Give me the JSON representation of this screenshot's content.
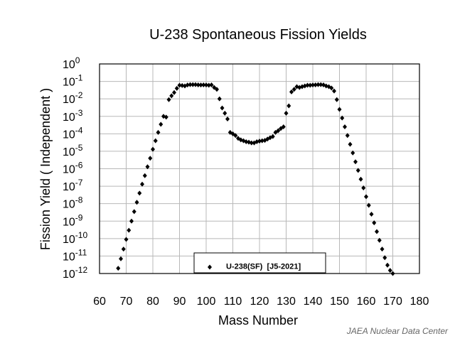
{
  "chart_data": {
    "type": "scatter",
    "title": "U-238  Spontaneous Fission Yields",
    "xlabel": "Mass Number",
    "ylabel": "Fission Yield  ( Independent )",
    "xlim": [
      60,
      180
    ],
    "x_ticks": [
      "60",
      "70",
      "80",
      "90",
      "100",
      "110",
      "120",
      "130",
      "140",
      "150",
      "160",
      "170",
      "180"
    ],
    "y_scale": "log",
    "ylim": [
      1e-12,
      1
    ],
    "y_tick_exponents": [
      "0",
      "-1",
      "-2",
      "-3",
      "-4",
      "-5",
      "-6",
      "-7",
      "-8",
      "-9",
      "-10",
      "-11",
      "-12"
    ],
    "y_tick_base": "10",
    "grid": true,
    "legend_position": "bottom-center",
    "series": [
      {
        "name": "U-238(SF)  [J5-2021]",
        "marker": "diamond",
        "color": "#000000",
        "points": [
          [
            67,
            2e-12
          ],
          [
            68,
            7e-12
          ],
          [
            69,
            2.5e-11
          ],
          [
            70,
            9e-11
          ],
          [
            71,
            3e-10
          ],
          [
            72,
            1e-09
          ],
          [
            73,
            3.5e-09
          ],
          [
            74,
            1.2e-08
          ],
          [
            75,
            4e-08
          ],
          [
            76,
            1.3e-07
          ],
          [
            77,
            4e-07
          ],
          [
            78,
            1.3e-06
          ],
          [
            79,
            4e-06
          ],
          [
            80,
            1.3e-05
          ],
          [
            81,
            4e-05
          ],
          [
            82,
            0.00012
          ],
          [
            83,
            0.00035
          ],
          [
            84,
            0.001
          ],
          [
            85,
            0.0009
          ],
          [
            86,
            0.009
          ],
          [
            87,
            0.015
          ],
          [
            88,
            0.023
          ],
          [
            89,
            0.04
          ],
          [
            90,
            0.06
          ],
          [
            91,
            0.058
          ],
          [
            92,
            0.055
          ],
          [
            93,
            0.062
          ],
          [
            94,
            0.065
          ],
          [
            95,
            0.065
          ],
          [
            96,
            0.065
          ],
          [
            97,
            0.063
          ],
          [
            98,
            0.062
          ],
          [
            99,
            0.063
          ],
          [
            100,
            0.062
          ],
          [
            101,
            0.06
          ],
          [
            102,
            0.063
          ],
          [
            103,
            0.045
          ],
          [
            104,
            0.035
          ],
          [
            105,
            0.01
          ],
          [
            106,
            0.003
          ],
          [
            107,
            0.0015
          ],
          [
            108,
            0.0007
          ],
          [
            109,
            0.00012
          ],
          [
            110,
            0.0001
          ],
          [
            111,
            8e-05
          ],
          [
            112,
            5.5e-05
          ],
          [
            113,
            4.5e-05
          ],
          [
            114,
            4e-05
          ],
          [
            115,
            3.5e-05
          ],
          [
            116,
            3.3e-05
          ],
          [
            117,
            3e-05
          ],
          [
            118,
            3e-05
          ],
          [
            119,
            3.5e-05
          ],
          [
            120,
            3.8e-05
          ],
          [
            121,
            4e-05
          ],
          [
            122,
            4.2e-05
          ],
          [
            123,
            5e-05
          ],
          [
            124,
            6e-05
          ],
          [
            125,
            7e-05
          ],
          [
            126,
            0.00012
          ],
          [
            127,
            0.00015
          ],
          [
            128,
            0.0002
          ],
          [
            129,
            0.00025
          ],
          [
            130,
            0.0015
          ],
          [
            131,
            0.004
          ],
          [
            132,
            0.025
          ],
          [
            133,
            0.035
          ],
          [
            134,
            0.05
          ],
          [
            135,
            0.045
          ],
          [
            136,
            0.05
          ],
          [
            137,
            0.055
          ],
          [
            138,
            0.06
          ],
          [
            139,
            0.06
          ],
          [
            140,
            0.062
          ],
          [
            141,
            0.063
          ],
          [
            142,
            0.065
          ],
          [
            143,
            0.065
          ],
          [
            144,
            0.063
          ],
          [
            145,
            0.055
          ],
          [
            146,
            0.05
          ],
          [
            147,
            0.042
          ],
          [
            148,
            0.028
          ],
          [
            149,
            0.009
          ],
          [
            150,
            0.0025
          ],
          [
            151,
            0.0008
          ],
          [
            152,
            0.00025
          ],
          [
            153,
            8e-05
          ],
          [
            154,
            2.5e-05
          ],
          [
            155,
            8e-06
          ],
          [
            156,
            2.5e-06
          ],
          [
            157,
            8e-07
          ],
          [
            158,
            2.5e-07
          ],
          [
            159,
            8e-08
          ],
          [
            160,
            2.5e-08
          ],
          [
            161,
            8e-09
          ],
          [
            162,
            2.5e-09
          ],
          [
            163,
            8e-10
          ],
          [
            164,
            2.5e-10
          ],
          [
            165,
            8e-11
          ],
          [
            166,
            2.5e-11
          ],
          [
            167,
            8e-12
          ],
          [
            168,
            3e-12
          ],
          [
            169,
            1.5e-12
          ],
          [
            170,
            1e-12
          ]
        ]
      }
    ]
  },
  "credit": "JAEA Nuclear Data Center"
}
